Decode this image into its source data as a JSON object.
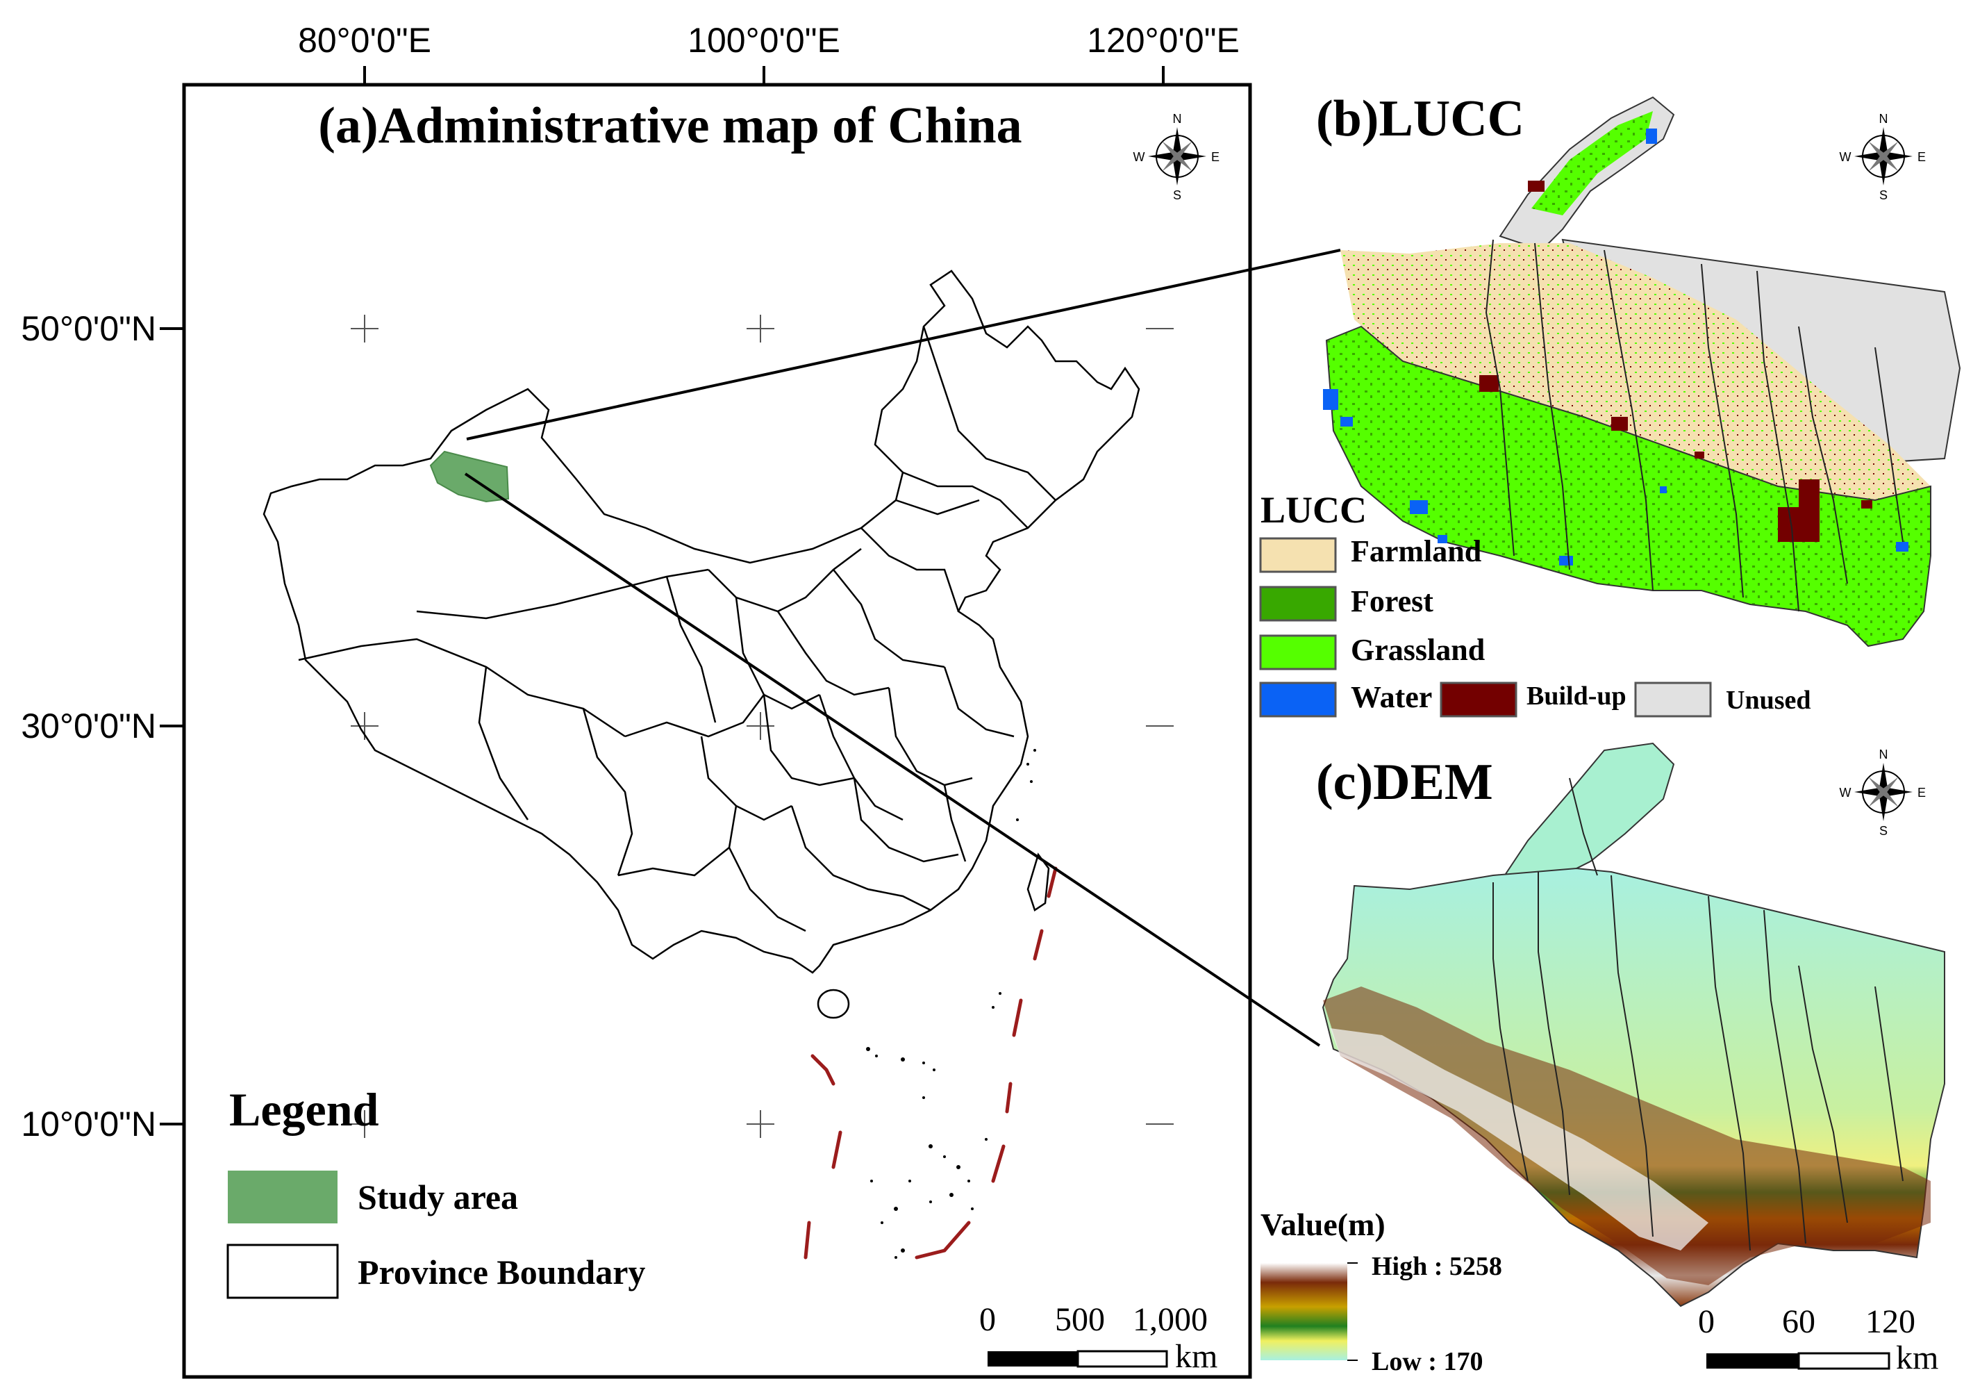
{
  "panel_a": {
    "title": "(a)Administrative map of China",
    "lon_labels": [
      "80°0'0\"E",
      "100°0'0\"E",
      "120°0'0\"E"
    ],
    "lat_labels": [
      "50°0'0\"N",
      "30°0'0\"N",
      "10°0'0\"N"
    ],
    "legend": {
      "title": "Legend",
      "items": [
        {
          "label": "Study area",
          "color": "#6aaa6a"
        },
        {
          "label": "Province Boundary",
          "color": "#ffffff"
        }
      ]
    },
    "scale": {
      "ticks": [
        "0",
        "500",
        "1,000"
      ],
      "unit": "km"
    }
  },
  "panel_b": {
    "title": "(b)LUCC",
    "legend": {
      "title": "LUCC",
      "items": [
        {
          "label": "Farmland",
          "color": "#f5e1b0"
        },
        {
          "label": "Forest",
          "color": "#38a800"
        },
        {
          "label": "Grassland",
          "color": "#55ff00"
        },
        {
          "label": "Water",
          "color": "#0a62f5"
        },
        {
          "label": "Build-up",
          "color": "#730000"
        },
        {
          "label": "Unused",
          "color": "#e1e1e1"
        }
      ]
    }
  },
  "panel_c": {
    "title": "(c)DEM",
    "legend": {
      "title": "Value(m)",
      "high": "High : 5258",
      "low": "Low : 170"
    },
    "scale": {
      "ticks": [
        "0",
        "60",
        "120"
      ],
      "unit": "km"
    }
  },
  "compass": {
    "n": "N",
    "s": "S",
    "e": "E",
    "w": "W"
  },
  "colors": {
    "study_area": "#6aaa6a",
    "nine_dash": "#9b1c1c",
    "grass": "#55ff00",
    "forest": "#38a800",
    "farm": "#f5e1b0",
    "unused": "#e1e1e1",
    "water": "#0a62f5",
    "buildup": "#730000"
  }
}
